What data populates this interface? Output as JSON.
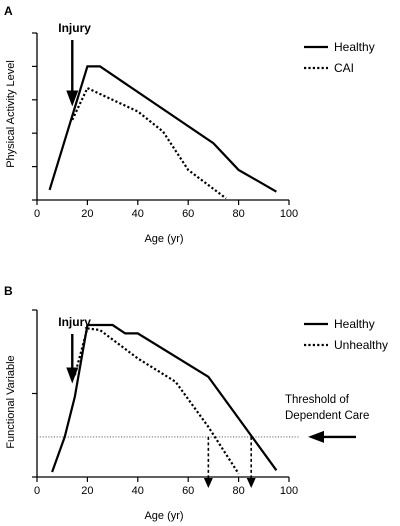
{
  "chart_data": [
    {
      "panel": "A",
      "type": "line",
      "xlabel": "Age (yr)",
      "ylabel": "Physical Activity Level",
      "xlim": [
        0,
        100
      ],
      "ylim": [
        0,
        1
      ],
      "xticks": [
        0,
        20,
        40,
        60,
        80,
        100
      ],
      "yticks": [
        0,
        0.2,
        0.4,
        0.6,
        0.8,
        1.0
      ],
      "y_tick_labels_shown": false,
      "legend_position": "top-right",
      "series": [
        {
          "name": "Healthy",
          "style": "solid",
          "x": [
            5,
            20,
            25,
            70,
            80,
            95
          ],
          "y": [
            0.06,
            0.8,
            0.8,
            0.34,
            0.18,
            0.05
          ]
        },
        {
          "name": "CAI",
          "style": "dotted",
          "x": [
            14,
            20,
            40,
            50,
            60,
            75
          ],
          "y": [
            0.48,
            0.67,
            0.53,
            0.41,
            0.18,
            0.01
          ]
        }
      ],
      "annotations": [
        {
          "text": "Injury",
          "arrow_at_x": 14,
          "direction": "down"
        }
      ]
    },
    {
      "panel": "B",
      "type": "line",
      "xlabel": "Age (yr)",
      "ylabel": "Functional Variable",
      "xlim": [
        0,
        100
      ],
      "ylim": [
        0,
        1
      ],
      "xticks": [
        0,
        20,
        40,
        60,
        80,
        100
      ],
      "yticks": [
        0,
        0.5,
        1.0
      ],
      "y_tick_labels_shown": false,
      "legend_position": "top-right",
      "threshold": {
        "value": 0.24,
        "label_lines": [
          "Threshold of",
          "Dependent Care"
        ],
        "style": "dotted"
      },
      "series": [
        {
          "name": "Healthy",
          "style": "solid",
          "x": [
            6,
            11,
            15,
            20,
            30,
            35,
            40,
            68,
            95
          ],
          "y": [
            0.03,
            0.24,
            0.48,
            0.91,
            0.91,
            0.86,
            0.86,
            0.6,
            0.04
          ]
        },
        {
          "name": "Unhealthy",
          "style": "dotted",
          "x": [
            15,
            20,
            25,
            40,
            55,
            68,
            80
          ],
          "y": [
            0.61,
            0.89,
            0.88,
            0.71,
            0.57,
            0.3,
            0.02
          ]
        }
      ],
      "drop_lines": [
        {
          "x": 68,
          "from_y": 0.24,
          "to_y": -0.06
        },
        {
          "x": 85,
          "from_y": 0.24,
          "to_y": -0.06
        }
      ],
      "annotations": [
        {
          "text": "Injury",
          "arrow_at_x": 14,
          "direction": "down"
        }
      ]
    }
  ]
}
